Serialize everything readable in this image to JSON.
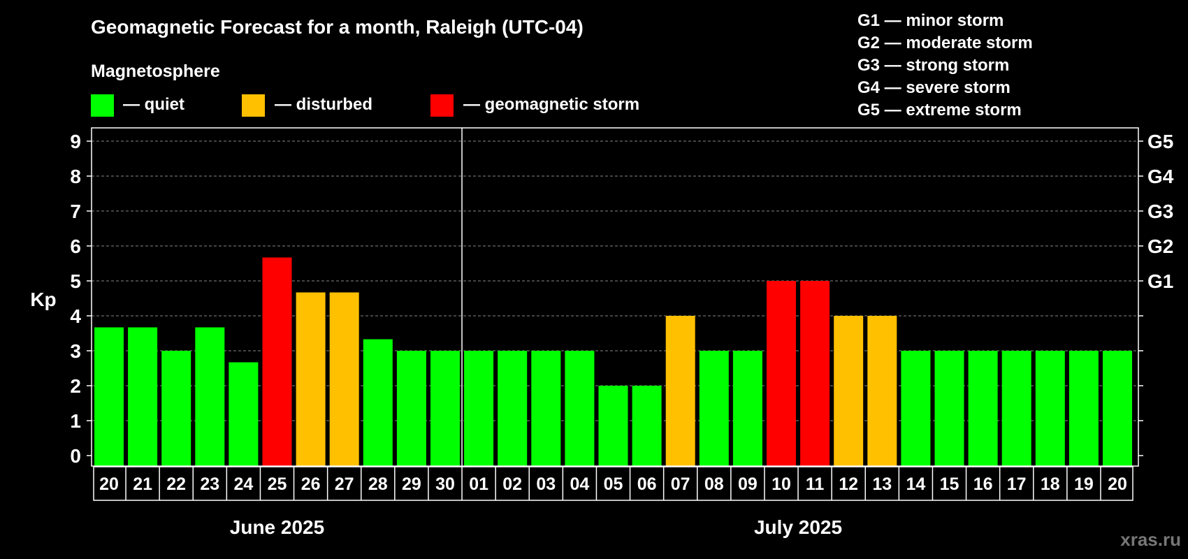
{
  "chart_data": {
    "type": "bar",
    "title": "Geomagnetic Forecast for a month, Raleigh (UTC-04)",
    "legend_title": "Magnetosphere",
    "legend": [
      {
        "key": "quiet",
        "label": "— quiet",
        "color": "#00ff00"
      },
      {
        "key": "disturbed",
        "label": "— disturbed",
        "color": "#ffc000"
      },
      {
        "key": "storm",
        "label": "— geomagnetic storm",
        "color": "#ff0000"
      }
    ],
    "storm_scale": [
      "G1 — minor storm",
      "G2 — moderate storm",
      "G3 — strong storm",
      "G4 — severe storm",
      "G5 — extreme storm"
    ],
    "ylabel": "Kp",
    "ylim": [
      0,
      9
    ],
    "yticks": [
      "0",
      "1",
      "2",
      "3",
      "4",
      "5",
      "6",
      "7",
      "8",
      "9"
    ],
    "right_ticks": [
      {
        "kp": 5,
        "label": "G1"
      },
      {
        "kp": 6,
        "label": "G2"
      },
      {
        "kp": 7,
        "label": "G3"
      },
      {
        "kp": 8,
        "label": "G4"
      },
      {
        "kp": 9,
        "label": "G5"
      }
    ],
    "grid": "dashed horizontal",
    "categories": [
      "20",
      "21",
      "22",
      "23",
      "24",
      "25",
      "26",
      "27",
      "28",
      "29",
      "30",
      "01",
      "02",
      "03",
      "04",
      "05",
      "06",
      "07",
      "08",
      "09",
      "10",
      "11",
      "12",
      "13",
      "14",
      "15",
      "16",
      "17",
      "18",
      "19",
      "20"
    ],
    "values": [
      3.67,
      3.67,
      3,
      3.67,
      2.67,
      5.67,
      4.67,
      4.67,
      3.33,
      3,
      3,
      3,
      3,
      3,
      3,
      2,
      2,
      4,
      3,
      3,
      5,
      5,
      4,
      4,
      3,
      3,
      3,
      3,
      3,
      3,
      3
    ],
    "colors": [
      "#00ff00",
      "#00ff00",
      "#00ff00",
      "#00ff00",
      "#00ff00",
      "#ff0000",
      "#ffc000",
      "#ffc000",
      "#00ff00",
      "#00ff00",
      "#00ff00",
      "#00ff00",
      "#00ff00",
      "#00ff00",
      "#00ff00",
      "#00ff00",
      "#00ff00",
      "#ffc000",
      "#00ff00",
      "#00ff00",
      "#ff0000",
      "#ff0000",
      "#ffc000",
      "#ffc000",
      "#00ff00",
      "#00ff00",
      "#00ff00",
      "#00ff00",
      "#00ff00",
      "#00ff00",
      "#00ff00"
    ],
    "months": [
      {
        "label": "June 2025",
        "days": 11
      },
      {
        "label": "July 2025",
        "days": 20
      }
    ]
  },
  "watermark": "xras.ru"
}
